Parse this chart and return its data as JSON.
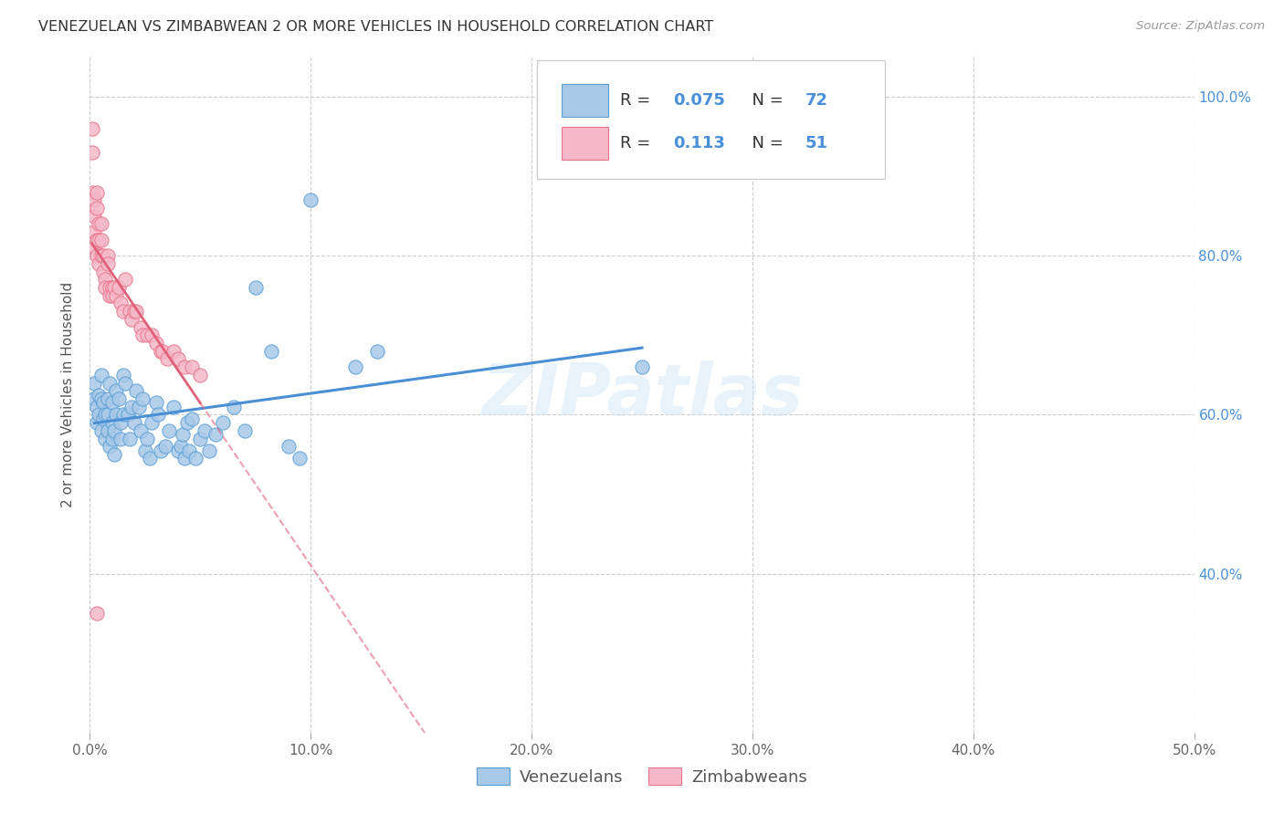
{
  "title": "VENEZUELAN VS ZIMBABWEAN 2 OR MORE VEHICLES IN HOUSEHOLD CORRELATION CHART",
  "source": "Source: ZipAtlas.com",
  "ylabel": "2 or more Vehicles in Household",
  "xmin": 0.0,
  "xmax": 0.5,
  "ymin": 0.2,
  "ymax": 1.05,
  "xticks": [
    0.0,
    0.1,
    0.2,
    0.3,
    0.4,
    0.5
  ],
  "xtick_labels": [
    "0.0%",
    "10.0%",
    "20.0%",
    "30.0%",
    "40.0%",
    "50.0%"
  ],
  "yticks": [
    0.4,
    0.6,
    0.8,
    1.0
  ],
  "ytick_labels": [
    "40.0%",
    "60.0%",
    "80.0%",
    "100.0%"
  ],
  "legend_R_blue": "0.075",
  "legend_N_blue": "72",
  "legend_R_pink": "0.113",
  "legend_N_pink": "51",
  "blue_fill": "#A8C8E8",
  "pink_fill": "#F4B8C8",
  "blue_edge": "#5A9FD4",
  "pink_edge": "#E8748A",
  "blue_line": "#4A8FD4",
  "pink_line": "#E0607A",
  "watermark": "ZIPatlas",
  "venezuelan_x": [
    0.002,
    0.002,
    0.003,
    0.003,
    0.004,
    0.004,
    0.005,
    0.005,
    0.005,
    0.006,
    0.006,
    0.007,
    0.007,
    0.008,
    0.008,
    0.008,
    0.009,
    0.009,
    0.01,
    0.01,
    0.01,
    0.011,
    0.011,
    0.012,
    0.012,
    0.013,
    0.014,
    0.014,
    0.015,
    0.015,
    0.016,
    0.017,
    0.018,
    0.019,
    0.02,
    0.021,
    0.022,
    0.023,
    0.024,
    0.025,
    0.026,
    0.027,
    0.028,
    0.03,
    0.031,
    0.032,
    0.034,
    0.036,
    0.038,
    0.04,
    0.041,
    0.042,
    0.043,
    0.044,
    0.045,
    0.046,
    0.048,
    0.05,
    0.052,
    0.054,
    0.057,
    0.06,
    0.065,
    0.07,
    0.075,
    0.082,
    0.09,
    0.095,
    0.1,
    0.12,
    0.13,
    0.25
  ],
  "venezuelan_y": [
    0.62,
    0.64,
    0.61,
    0.59,
    0.6,
    0.625,
    0.58,
    0.62,
    0.65,
    0.595,
    0.615,
    0.57,
    0.6,
    0.58,
    0.6,
    0.62,
    0.56,
    0.64,
    0.57,
    0.59,
    0.615,
    0.55,
    0.58,
    0.6,
    0.63,
    0.62,
    0.57,
    0.59,
    0.6,
    0.65,
    0.64,
    0.6,
    0.57,
    0.61,
    0.59,
    0.63,
    0.61,
    0.58,
    0.62,
    0.555,
    0.57,
    0.545,
    0.59,
    0.615,
    0.6,
    0.555,
    0.56,
    0.58,
    0.61,
    0.555,
    0.56,
    0.575,
    0.545,
    0.59,
    0.555,
    0.595,
    0.545,
    0.57,
    0.58,
    0.555,
    0.575,
    0.59,
    0.61,
    0.58,
    0.76,
    0.68,
    0.56,
    0.545,
    0.87,
    0.66,
    0.68,
    0.66
  ],
  "zimbabwean_x": [
    0.001,
    0.001,
    0.001,
    0.002,
    0.002,
    0.002,
    0.002,
    0.003,
    0.003,
    0.003,
    0.003,
    0.004,
    0.004,
    0.004,
    0.005,
    0.005,
    0.005,
    0.006,
    0.006,
    0.007,
    0.007,
    0.008,
    0.008,
    0.009,
    0.009,
    0.01,
    0.01,
    0.011,
    0.012,
    0.013,
    0.014,
    0.015,
    0.016,
    0.018,
    0.019,
    0.02,
    0.021,
    0.023,
    0.024,
    0.026,
    0.028,
    0.03,
    0.032,
    0.033,
    0.035,
    0.038,
    0.04,
    0.043,
    0.046,
    0.05,
    0.003
  ],
  "zimbabwean_y": [
    0.96,
    0.93,
    0.88,
    0.87,
    0.85,
    0.83,
    0.81,
    0.88,
    0.86,
    0.82,
    0.8,
    0.84,
    0.82,
    0.79,
    0.8,
    0.82,
    0.84,
    0.8,
    0.78,
    0.77,
    0.76,
    0.8,
    0.79,
    0.76,
    0.75,
    0.76,
    0.75,
    0.76,
    0.75,
    0.76,
    0.74,
    0.73,
    0.77,
    0.73,
    0.72,
    0.73,
    0.73,
    0.71,
    0.7,
    0.7,
    0.7,
    0.69,
    0.68,
    0.68,
    0.67,
    0.68,
    0.67,
    0.66,
    0.66,
    0.65,
    0.35
  ]
}
